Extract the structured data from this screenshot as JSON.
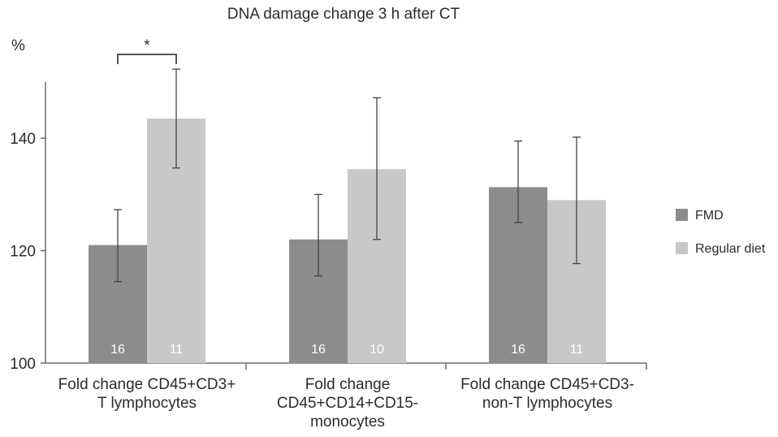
{
  "chart_data": {
    "type": "bar",
    "title": "DNA damage change 3 h after CT",
    "ylabel": "%",
    "xlabel": "",
    "ylim": [
      100,
      150
    ],
    "yticks": [
      100,
      120,
      140
    ],
    "categories": [
      [
        "Fold change CD45+CD3+",
        "T lymphocytes"
      ],
      [
        "Fold change",
        "CD45+CD14+CD15-",
        "monocytes"
      ],
      [
        "Fold change CD45+CD3-",
        "non-T lymphocytes"
      ]
    ],
    "series": [
      {
        "name": "FMD",
        "color": "#8c8c8c",
        "values": [
          121,
          122,
          131.3
        ],
        "error_low": [
          114.5,
          115.5,
          125
        ],
        "error_high": [
          127.3,
          130,
          139.5
        ],
        "n": [
          "16",
          "16",
          "16"
        ]
      },
      {
        "name": "Regular diet",
        "color": "#c8c8c8",
        "values": [
          143.5,
          134.5,
          129
        ],
        "error_low": [
          134.7,
          122,
          117.7
        ],
        "error_high": [
          152.3,
          147.2,
          140.2
        ],
        "n": [
          "11",
          "10",
          "11"
        ]
      }
    ],
    "annotations": [
      {
        "text": "*",
        "type": "significance-bracket",
        "category": 0
      }
    ],
    "grid": false,
    "legend_position": "right"
  }
}
